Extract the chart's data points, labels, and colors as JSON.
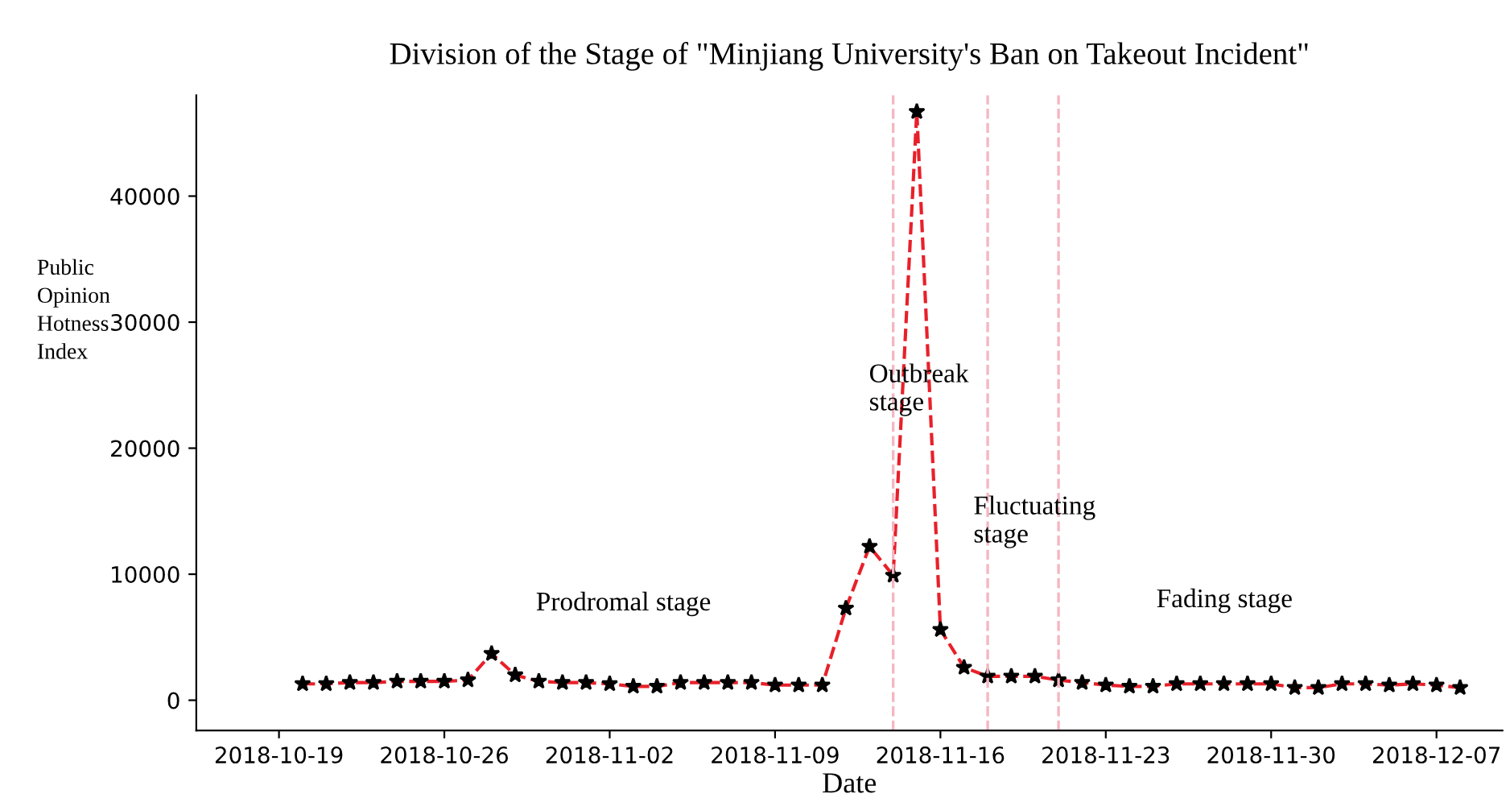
{
  "chart_data": {
    "type": "line",
    "title": "Division of the Stage of \"Minjiang University's Ban on Takeout Incident\"",
    "xlabel": "Date",
    "ylabel": "Public\nOpinion\nHotness\nIndex",
    "x": [
      "2018-10-20",
      "2018-10-21",
      "2018-10-22",
      "2018-10-23",
      "2018-10-24",
      "2018-10-25",
      "2018-10-26",
      "2018-10-27",
      "2018-10-28",
      "2018-10-29",
      "2018-10-30",
      "2018-10-31",
      "2018-11-01",
      "2018-11-02",
      "2018-11-03",
      "2018-11-04",
      "2018-11-05",
      "2018-11-06",
      "2018-11-07",
      "2018-11-08",
      "2018-11-09",
      "2018-11-10",
      "2018-11-11",
      "2018-11-12",
      "2018-11-13",
      "2018-11-14",
      "2018-11-15",
      "2018-11-16",
      "2018-11-17",
      "2018-11-18",
      "2018-11-19",
      "2018-11-20",
      "2018-11-21",
      "2018-11-22",
      "2018-11-23",
      "2018-11-24",
      "2018-11-25",
      "2018-11-26",
      "2018-11-27",
      "2018-11-28",
      "2018-11-29",
      "2018-11-30",
      "2018-12-01",
      "2018-12-02",
      "2018-12-03",
      "2018-12-04",
      "2018-12-05",
      "2018-12-06",
      "2018-12-07",
      "2018-12-08"
    ],
    "series": [
      {
        "color": "#e8202a",
        "values": [
          1300,
          1300,
          1400,
          1400,
          1500,
          1500,
          1500,
          1600,
          3700,
          2000,
          1500,
          1400,
          1400,
          1300,
          1100,
          1100,
          1400,
          1400,
          1400,
          1400,
          1200,
          1200,
          1200,
          7300,
          12200,
          9900,
          46700,
          5600,
          2600,
          1900,
          1900,
          1900,
          1600,
          1400,
          1200,
          1100,
          1100,
          1300,
          1300,
          1300,
          1300,
          1300,
          1000,
          1000,
          1300,
          1300,
          1200,
          1300,
          1200,
          1000
        ]
      }
    ],
    "xlim": [
      "2018-10-15T12:00",
      "2018-12-09T19:00"
    ],
    "xticks": [
      "2018-10-19",
      "2018-10-26",
      "2018-11-02",
      "2018-11-09",
      "2018-11-16",
      "2018-11-23",
      "2018-11-30",
      "2018-12-07"
    ],
    "ylim": [
      -2400,
      48000
    ],
    "yticks": [
      0,
      10000,
      20000,
      30000,
      40000
    ],
    "ref_lines": [
      {
        "axis": "x",
        "value": "2018-11-14",
        "color": "#f4b6c2",
        "line_style": "dashed"
      },
      {
        "axis": "x",
        "value": "2018-11-18",
        "color": "#f4b6c2",
        "line_style": "dashed"
      },
      {
        "axis": "x",
        "value": "2018-11-21",
        "color": "#f4b6c2",
        "line_style": "dashed"
      }
    ],
    "annotations": [
      "Prodromal stage",
      "Outbreak\nstage",
      "Fluctuating\nstage",
      "Fading stage"
    ],
    "marker": "star",
    "line_style": "dashed",
    "grid": false
  }
}
